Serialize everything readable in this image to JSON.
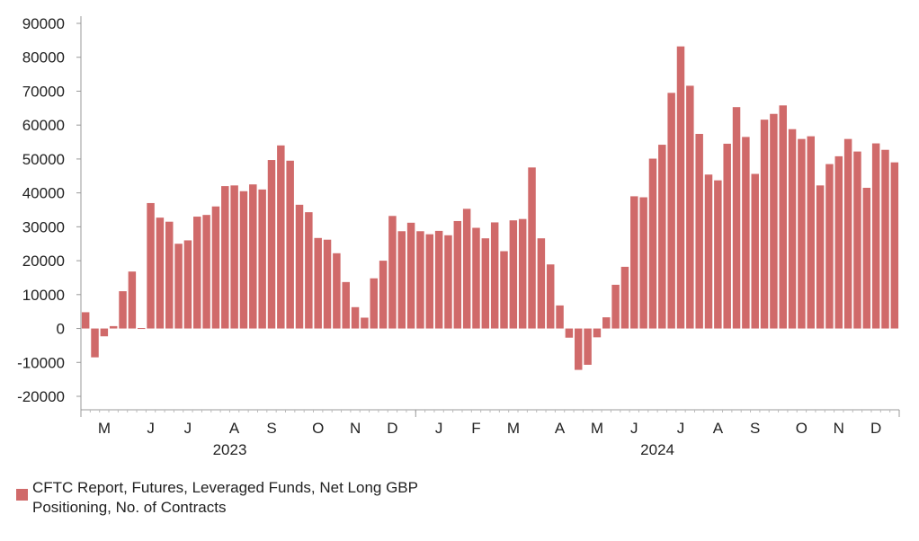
{
  "chart_data": {
    "type": "bar",
    "title": "",
    "xlabel": "",
    "ylabel": "",
    "ylim": [
      -25000,
      90000
    ],
    "yticks": [
      -20000,
      -10000,
      0,
      10000,
      20000,
      30000,
      40000,
      50000,
      60000,
      70000,
      80000,
      90000
    ],
    "ytick_labels": [
      "-20000",
      "-10000",
      "0",
      "10000",
      "20000",
      "30000",
      "40000",
      "50000",
      "60000",
      "70000",
      "80000",
      "90000"
    ],
    "month_labels": [
      "M",
      "J",
      "J",
      "A",
      "S",
      "O",
      "N",
      "D",
      "J",
      "F",
      "M",
      "A",
      "M",
      "J",
      "J",
      "A",
      "S",
      "O",
      "N",
      "D"
    ],
    "month_label_index": [
      2,
      7,
      11,
      16,
      20,
      25,
      29,
      33,
      38,
      42,
      46,
      51,
      55,
      59,
      64,
      68,
      72,
      77,
      81,
      85
    ],
    "year_labels": [
      "2023",
      "2024"
    ],
    "year_label_index": [
      15.5,
      61.5
    ],
    "year_boundary_index": 35.5,
    "values": [
      4800,
      -8500,
      -2300,
      700,
      11000,
      16800,
      0,
      37000,
      32700,
      31500,
      25000,
      26000,
      33000,
      33500,
      36000,
      42000,
      42200,
      40500,
      42500,
      41000,
      49700,
      54000,
      49500,
      36500,
      34300,
      26700,
      26200,
      22200,
      13700,
      6300,
      3200,
      14800,
      20000,
      33200,
      28700,
      31200,
      28700,
      27800,
      28800,
      27500,
      31700,
      35300,
      29700,
      26600,
      31300,
      22800,
      31900,
      32300,
      47500,
      26600,
      18900,
      6800,
      -2700,
      -12200,
      -10700,
      -2600,
      3300,
      12900,
      18200,
      39000,
      38700,
      50100,
      54200,
      69500,
      83200,
      71600,
      57400,
      45400,
      43700,
      54500,
      65300,
      56500,
      45600,
      61600,
      63300,
      65800,
      58800,
      55900,
      56700,
      42200,
      48500,
      50800,
      55900,
      52200,
      41500,
      54600,
      52700,
      49000
    ],
    "series": [
      {
        "name": "CFTC Report, Futures, Leveraged Funds, Net Long GBP Positioning, No. of Contracts",
        "color": "#d06a6a"
      }
    ],
    "legend": "bottom-left",
    "grid": false
  },
  "legend": {
    "label": "CFTC Report, Futures, Leveraged Funds, Net Long GBP Positioning, No. of Contracts"
  }
}
